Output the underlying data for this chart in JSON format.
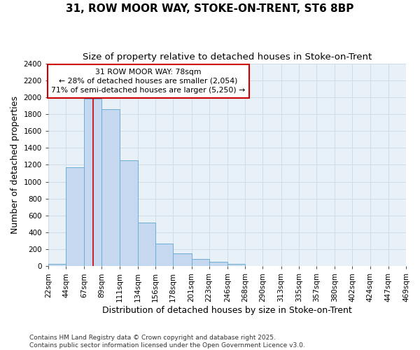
{
  "title": "31, ROW MOOR WAY, STOKE-ON-TRENT, ST6 8BP",
  "subtitle": "Size of property relative to detached houses in Stoke-on-Trent",
  "xlabel": "Distribution of detached houses by size in Stoke-on-Trent",
  "ylabel": "Number of detached properties",
  "bin_edges": [
    22,
    44,
    67,
    89,
    111,
    134,
    156,
    178,
    201,
    223,
    246,
    268,
    290,
    313,
    335,
    357,
    380,
    402,
    424,
    447,
    469
  ],
  "bar_heights": [
    30,
    1170,
    1980,
    1860,
    1250,
    520,
    270,
    150,
    85,
    50,
    30,
    0,
    0,
    0,
    0,
    0,
    0,
    0,
    0,
    0
  ],
  "property_size": 78,
  "bar_color": "#c5d8ef",
  "bar_edge_color": "#6baed6",
  "line_color": "#cc0000",
  "annotation_text": "31 ROW MOOR WAY: 78sqm\n← 28% of detached houses are smaller (2,054)\n71% of semi-detached houses are larger (5,250) →",
  "annotation_box_color": "#ffffff",
  "annotation_box_edge": "#cc0000",
  "grid_color": "#d0dce8",
  "background_color": "#ffffff",
  "plot_bg_color": "#e8f0f8",
  "ylim": [
    0,
    2400
  ],
  "yticks": [
    0,
    200,
    400,
    600,
    800,
    1000,
    1200,
    1400,
    1600,
    1800,
    2000,
    2200,
    2400
  ],
  "footnote": "Contains HM Land Registry data © Crown copyright and database right 2025.\nContains public sector information licensed under the Open Government Licence v3.0.",
  "title_fontsize": 11,
  "subtitle_fontsize": 9.5,
  "axis_label_fontsize": 9,
  "tick_fontsize": 7.5,
  "footnote_fontsize": 6.5
}
